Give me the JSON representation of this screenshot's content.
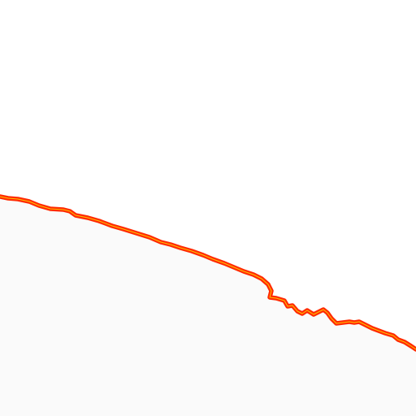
{
  "map": {
    "colors": {
      "background_above": "#ffffff",
      "background_below": "#fafafa",
      "boundary_line": "#ff2a00",
      "boundary_highlight": "#ffe000"
    }
  }
}
